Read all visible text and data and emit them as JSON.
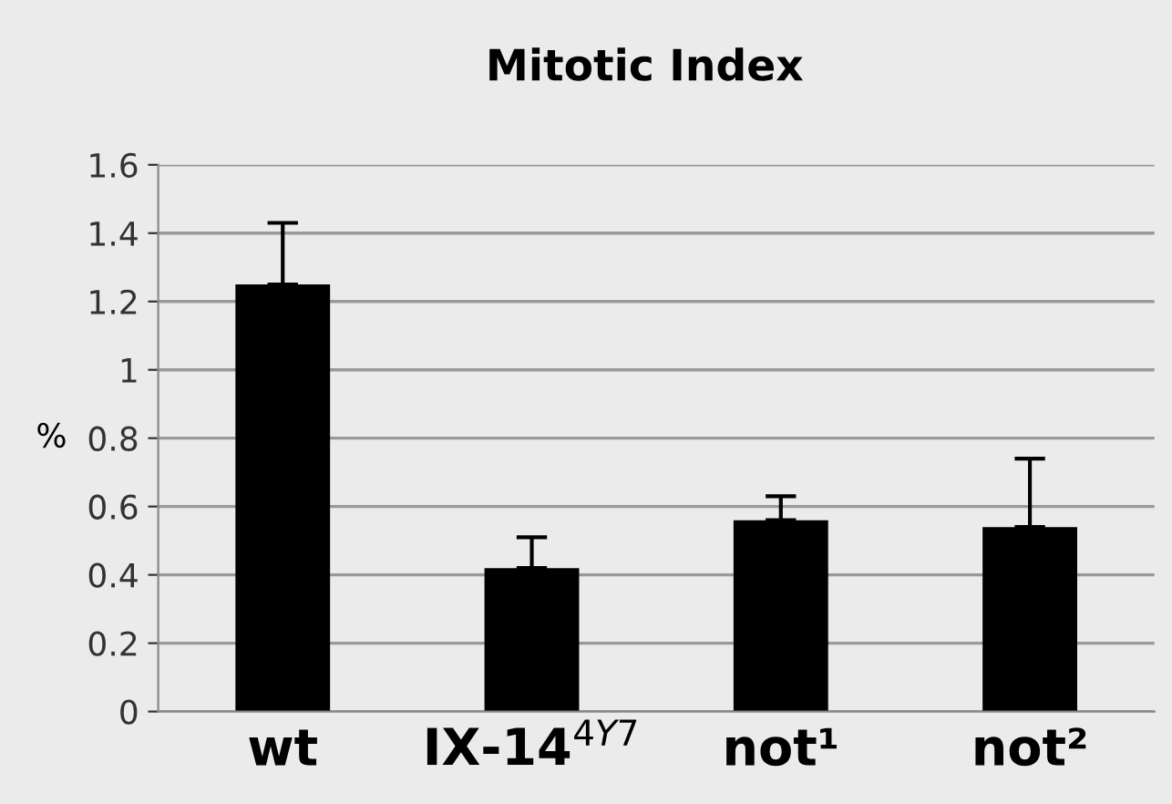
{
  "chart_data": {
    "type": "bar",
    "title": "Mitotic Index",
    "ylabel": "%",
    "categories": [
      "wt",
      "IX-14$^{4Y7}$",
      "not¹",
      "not²"
    ],
    "values": [
      1.25,
      0.42,
      0.56,
      0.54
    ],
    "errors": [
      [
        1.25,
        1.43
      ],
      [
        0.42,
        0.51
      ],
      [
        0.56,
        0.63
      ],
      [
        0.54,
        0.74
      ]
    ],
    "color": "#000000",
    "ylim": [
      0,
      1.6
    ],
    "yticks": [
      0,
      0.2,
      0.4,
      0.6,
      0.8,
      1,
      1.2,
      1.4,
      1.6
    ],
    "grid": "y",
    "legend": false
  }
}
